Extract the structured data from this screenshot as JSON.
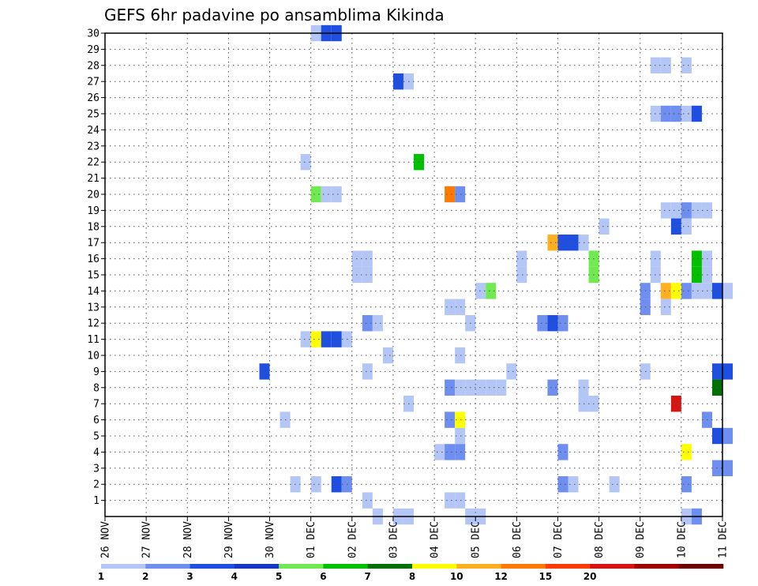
{
  "chart_data": {
    "type": "heatmap",
    "title": "GEFS 6hr padavine po ansamblima Kikinda",
    "xlabel": "",
    "ylabel": "",
    "x_tick_labels": [
      "26 NOV",
      "27 NOV",
      "28 NOV",
      "29 NOV",
      "30 NOV",
      "01 DEC",
      "02 DEC",
      "03 DEC",
      "04 DEC",
      "05 DEC",
      "06 DEC",
      "07 DEC",
      "08 DEC",
      "09 DEC",
      "10 DEC",
      "11 DEC"
    ],
    "x_unit": "6-hour step",
    "x_range": [
      0,
      60
    ],
    "y_tick_labels": [
      "1",
      "2",
      "3",
      "4",
      "5",
      "6",
      "7",
      "8",
      "9",
      "10",
      "11",
      "12",
      "13",
      "14",
      "15",
      "16",
      "17",
      "18",
      "19",
      "20",
      "21",
      "22",
      "23",
      "24",
      "25",
      "26",
      "27",
      "28",
      "29",
      "30"
    ],
    "y_range": [
      0,
      30
    ],
    "grid": true,
    "legend_position": "bottom",
    "legend": {
      "colors": [
        "#b4c6f5",
        "#6e8ef0",
        "#1e4fe0",
        "#1a35c8",
        "#70ea50",
        "#00c000",
        "#007000",
        "#ffff00",
        "#ffb020",
        "#ff7a00",
        "#ff3c00",
        "#d71414",
        "#a00000",
        "#6e0000"
      ],
      "labels": [
        "1",
        "2",
        "3",
        "4",
        "5",
        "6",
        "7",
        "8",
        "10",
        "12",
        "15",
        "20"
      ]
    },
    "cells": [
      {
        "x": 20,
        "y": 30,
        "v": 1
      },
      {
        "x": 21,
        "y": 30,
        "v": 3
      },
      {
        "x": 22,
        "y": 30,
        "v": 3
      },
      {
        "x": 53,
        "y": 28,
        "v": 1
      },
      {
        "x": 54,
        "y": 28,
        "v": 1
      },
      {
        "x": 56,
        "y": 28,
        "v": 1
      },
      {
        "x": 28,
        "y": 27,
        "v": 3
      },
      {
        "x": 29,
        "y": 27,
        "v": 1
      },
      {
        "x": 53,
        "y": 25,
        "v": 1
      },
      {
        "x": 54,
        "y": 25,
        "v": 2
      },
      {
        "x": 55,
        "y": 25,
        "v": 2
      },
      {
        "x": 56,
        "y": 25,
        "v": 1
      },
      {
        "x": 57,
        "y": 25,
        "v": 3
      },
      {
        "x": 30,
        "y": 22,
        "v": 6
      },
      {
        "x": 19,
        "y": 22,
        "v": 1
      },
      {
        "x": 20,
        "y": 20,
        "v": 5
      },
      {
        "x": 21,
        "y": 20,
        "v": 1
      },
      {
        "x": 22,
        "y": 20,
        "v": 1
      },
      {
        "x": 33,
        "y": 20,
        "v": 12
      },
      {
        "x": 34,
        "y": 20,
        "v": 2
      },
      {
        "x": 54,
        "y": 19,
        "v": 1
      },
      {
        "x": 55,
        "y": 19,
        "v": 1
      },
      {
        "x": 56,
        "y": 19,
        "v": 2
      },
      {
        "x": 57,
        "y": 19,
        "v": 1
      },
      {
        "x": 58,
        "y": 19,
        "v": 1
      },
      {
        "x": 48,
        "y": 18,
        "v": 1
      },
      {
        "x": 55,
        "y": 18,
        "v": 3
      },
      {
        "x": 56,
        "y": 18,
        "v": 1
      },
      {
        "x": 43,
        "y": 17,
        "v": 10
      },
      {
        "x": 44,
        "y": 17,
        "v": 3
      },
      {
        "x": 45,
        "y": 17,
        "v": 3
      },
      {
        "x": 46,
        "y": 17,
        "v": 1
      },
      {
        "x": 24,
        "y": 16,
        "v": 1
      },
      {
        "x": 25,
        "y": 16,
        "v": 1
      },
      {
        "x": 40,
        "y": 16,
        "v": 1
      },
      {
        "x": 47,
        "y": 16,
        "v": 5
      },
      {
        "x": 53,
        "y": 16,
        "v": 1
      },
      {
        "x": 57,
        "y": 16,
        "v": 6
      },
      {
        "x": 58,
        "y": 16,
        "v": 1
      },
      {
        "x": 24,
        "y": 15,
        "v": 1
      },
      {
        "x": 25,
        "y": 15,
        "v": 1
      },
      {
        "x": 40,
        "y": 15,
        "v": 1
      },
      {
        "x": 47,
        "y": 15,
        "v": 5
      },
      {
        "x": 53,
        "y": 15,
        "v": 1
      },
      {
        "x": 57,
        "y": 15,
        "v": 6
      },
      {
        "x": 58,
        "y": 15,
        "v": 1
      },
      {
        "x": 36,
        "y": 14,
        "v": 1
      },
      {
        "x": 37,
        "y": 14,
        "v": 5
      },
      {
        "x": 52,
        "y": 14,
        "v": 2
      },
      {
        "x": 54,
        "y": 14,
        "v": 10
      },
      {
        "x": 55,
        "y": 14,
        "v": 8
      },
      {
        "x": 56,
        "y": 14,
        "v": 2
      },
      {
        "x": 57,
        "y": 14,
        "v": 1
      },
      {
        "x": 58,
        "y": 14,
        "v": 1
      },
      {
        "x": 59,
        "y": 14,
        "v": 3
      },
      {
        "x": 60,
        "y": 14,
        "v": 1
      },
      {
        "x": 33,
        "y": 13,
        "v": 1
      },
      {
        "x": 34,
        "y": 13,
        "v": 1
      },
      {
        "x": 52,
        "y": 13,
        "v": 2
      },
      {
        "x": 54,
        "y": 13,
        "v": 1
      },
      {
        "x": 25,
        "y": 12,
        "v": 2
      },
      {
        "x": 26,
        "y": 12,
        "v": 1
      },
      {
        "x": 35,
        "y": 12,
        "v": 1
      },
      {
        "x": 42,
        "y": 12,
        "v": 2
      },
      {
        "x": 43,
        "y": 12,
        "v": 3
      },
      {
        "x": 44,
        "y": 12,
        "v": 2
      },
      {
        "x": 19,
        "y": 11,
        "v": 1
      },
      {
        "x": 20,
        "y": 11,
        "v": 8
      },
      {
        "x": 21,
        "y": 11,
        "v": 3
      },
      {
        "x": 22,
        "y": 11,
        "v": 3
      },
      {
        "x": 23,
        "y": 11,
        "v": 1
      },
      {
        "x": 27,
        "y": 10,
        "v": 1
      },
      {
        "x": 34,
        "y": 10,
        "v": 1
      },
      {
        "x": 15,
        "y": 9,
        "v": 3
      },
      {
        "x": 25,
        "y": 9,
        "v": 1
      },
      {
        "x": 39,
        "y": 9,
        "v": 1
      },
      {
        "x": 52,
        "y": 9,
        "v": 1
      },
      {
        "x": 59,
        "y": 9,
        "v": 3
      },
      {
        "x": 60,
        "y": 9,
        "v": 3
      },
      {
        "x": 33,
        "y": 8,
        "v": 2
      },
      {
        "x": 34,
        "y": 8,
        "v": 1
      },
      {
        "x": 35,
        "y": 8,
        "v": 1
      },
      {
        "x": 36,
        "y": 8,
        "v": 1
      },
      {
        "x": 37,
        "y": 8,
        "v": 1
      },
      {
        "x": 38,
        "y": 8,
        "v": 1
      },
      {
        "x": 43,
        "y": 8,
        "v": 2
      },
      {
        "x": 46,
        "y": 8,
        "v": 1
      },
      {
        "x": 59,
        "y": 8,
        "v": 7
      },
      {
        "x": 29,
        "y": 7,
        "v": 1
      },
      {
        "x": 46,
        "y": 7,
        "v": 1
      },
      {
        "x": 47,
        "y": 7,
        "v": 1
      },
      {
        "x": 55,
        "y": 7,
        "v": 20
      },
      {
        "x": 17,
        "y": 6,
        "v": 1
      },
      {
        "x": 33,
        "y": 6,
        "v": 2
      },
      {
        "x": 34,
        "y": 6,
        "v": 8
      },
      {
        "x": 58,
        "y": 6,
        "v": 2
      },
      {
        "x": 34,
        "y": 5,
        "v": 1
      },
      {
        "x": 59,
        "y": 5,
        "v": 3
      },
      {
        "x": 60,
        "y": 5,
        "v": 2
      },
      {
        "x": 32,
        "y": 4,
        "v": 1
      },
      {
        "x": 33,
        "y": 4,
        "v": 2
      },
      {
        "x": 34,
        "y": 4,
        "v": 2
      },
      {
        "x": 44,
        "y": 4,
        "v": 2
      },
      {
        "x": 56,
        "y": 4,
        "v": 8
      },
      {
        "x": 59,
        "y": 3,
        "v": 2
      },
      {
        "x": 60,
        "y": 3,
        "v": 2
      },
      {
        "x": 18,
        "y": 2,
        "v": 1
      },
      {
        "x": 20,
        "y": 2,
        "v": 1
      },
      {
        "x": 22,
        "y": 2,
        "v": 3
      },
      {
        "x": 23,
        "y": 2,
        "v": 2
      },
      {
        "x": 44,
        "y": 2,
        "v": 2
      },
      {
        "x": 45,
        "y": 2,
        "v": 1
      },
      {
        "x": 49,
        "y": 2,
        "v": 1
      },
      {
        "x": 56,
        "y": 2,
        "v": 2
      },
      {
        "x": 25,
        "y": 1,
        "v": 1
      },
      {
        "x": 33,
        "y": 1,
        "v": 1
      },
      {
        "x": 34,
        "y": 1,
        "v": 1
      },
      {
        "x": 26,
        "y": 0,
        "v": 1
      },
      {
        "x": 28,
        "y": 0,
        "v": 1
      },
      {
        "x": 29,
        "y": 0,
        "v": 1
      },
      {
        "x": 35,
        "y": 0,
        "v": 1
      },
      {
        "x": 36,
        "y": 0,
        "v": 1
      },
      {
        "x": 56,
        "y": 0,
        "v": 1
      },
      {
        "x": 57,
        "y": 0,
        "v": 2
      }
    ]
  }
}
